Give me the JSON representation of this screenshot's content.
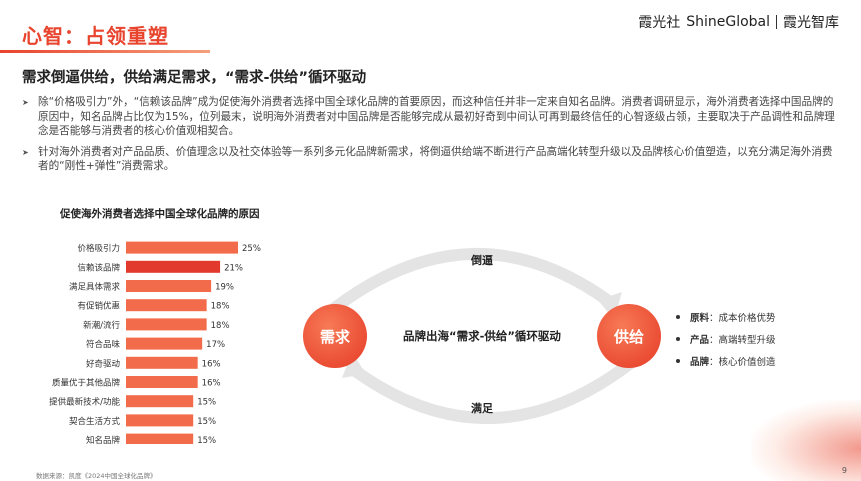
{
  "header": {
    "title": "心智：占领重塑",
    "brand_left": "霞光社",
    "brand_en": "ShineGlobal",
    "brand_right": "霞光智库"
  },
  "subtitle": "需求倒逼供给，供给满足需求，“需求-供给”循环驱动",
  "bullets": [
    "除“价格吸引力”外，“信赖该品牌”成为促使海外消费者选择中国全球化品牌的首要原因，而这种信任并非一定来自知名品牌。消费者调研显示，海外消费者选择中国品牌的原因中，知名品牌占比仅为15%，位列最末，说明海外消费者对中国品牌是否能够完成从最初好奇到中间认可再到最终信任的心智逐级占领，主要取决于产品调性和品牌理念是否能够与消费者的核心价值观相契合。",
    "针对海外消费者对产品品质、价值理念以及社交体验等一系列多元化品牌新需求，将倒逼供给端不断进行产品高端化转型升级以及品牌核心价值塑造，以充分满足海外消费者的“刚性+弹性”消费需求。"
  ],
  "chart_data": {
    "type": "bar",
    "orientation": "horizontal",
    "title": "促使海外消费者选择中国全球化品牌的原因",
    "categories": [
      "价格吸引力",
      "信赖该品牌",
      "满足具体需求",
      "有促销优惠",
      "新潮/流行",
      "符合品味",
      "好奇驱动",
      "质量优于其他品牌",
      "提供最新技术/功能",
      "契合生活方式",
      "知名品牌"
    ],
    "values": [
      25,
      21,
      19,
      18,
      18,
      17,
      16,
      16,
      15,
      15,
      15
    ],
    "value_labels": [
      "25%",
      "21%",
      "19%",
      "18%",
      "18%",
      "17%",
      "16%",
      "16%",
      "15%",
      "15%",
      "15%"
    ],
    "highlight_index": 1,
    "colors": {
      "bar": "#f26b4a",
      "highlight": "#e23a2c"
    }
  },
  "loop": {
    "left_node": "需求",
    "right_node": "供给",
    "center_text": "品牌出海“需求-供给”循环驱动",
    "top_label": "倒逼",
    "bottom_label": "满足"
  },
  "side_list": [
    {
      "key": "原料",
      "value": "：成本价格优势"
    },
    {
      "key": "产品",
      "value": "：高端转型升级"
    },
    {
      "key": "品牌",
      "value": "：核心价值创造"
    }
  ],
  "footer": {
    "source": "数据来源：凯度《2024中国全球化品牌》",
    "page": "9"
  }
}
